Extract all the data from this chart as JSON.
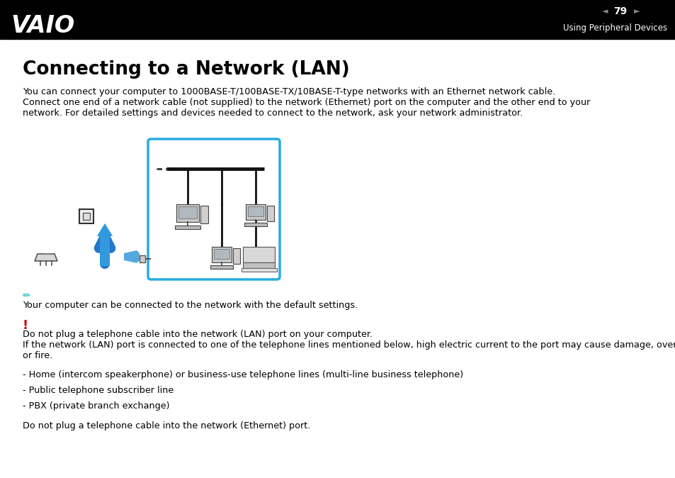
{
  "bg_color": "#ffffff",
  "header_bg": "#000000",
  "header_text_color": "#ffffff",
  "header_page": "79",
  "header_subtitle": "Using Peripheral Devices",
  "title": "Connecting to a Network (LAN)",
  "body_line1": "You can connect your computer to 1000BASE-T/100BASE-TX/10BASE-T-type networks with an Ethernet network cable.",
  "body_line2": "Connect one end of a network cable (not supplied) to the network (Ethernet) port on the computer and the other end to your",
  "body_line3": "network. For detailed settings and devices needed to connect to the network, ask your network administrator.",
  "note_icon_color": "#00b8b8",
  "note_text": "Your computer can be connected to the network with the default settings.",
  "warning_icon_color": "#cc0000",
  "warning_text1": "Do not plug a telephone cable into the network (LAN) port on your computer.",
  "warning_text2": "If the network (LAN) port is connected to one of the telephone lines mentioned below, high electric current to the port may cause damage, overheating,",
  "warning_text3": "or fire.",
  "bullet1": "- Home (intercom speakerphone) or business-use telephone lines (multi-line business telephone)",
  "bullet2": "- Public telephone subscriber line",
  "bullet3": "- PBX (private branch exchange)",
  "footer_text": "Do not plug a telephone cable into the network (Ethernet) port.",
  "diagram_border_color": "#29abe2",
  "body_fontsize": 9.2,
  "note_fontsize": 9.2,
  "title_fontsize": 19
}
